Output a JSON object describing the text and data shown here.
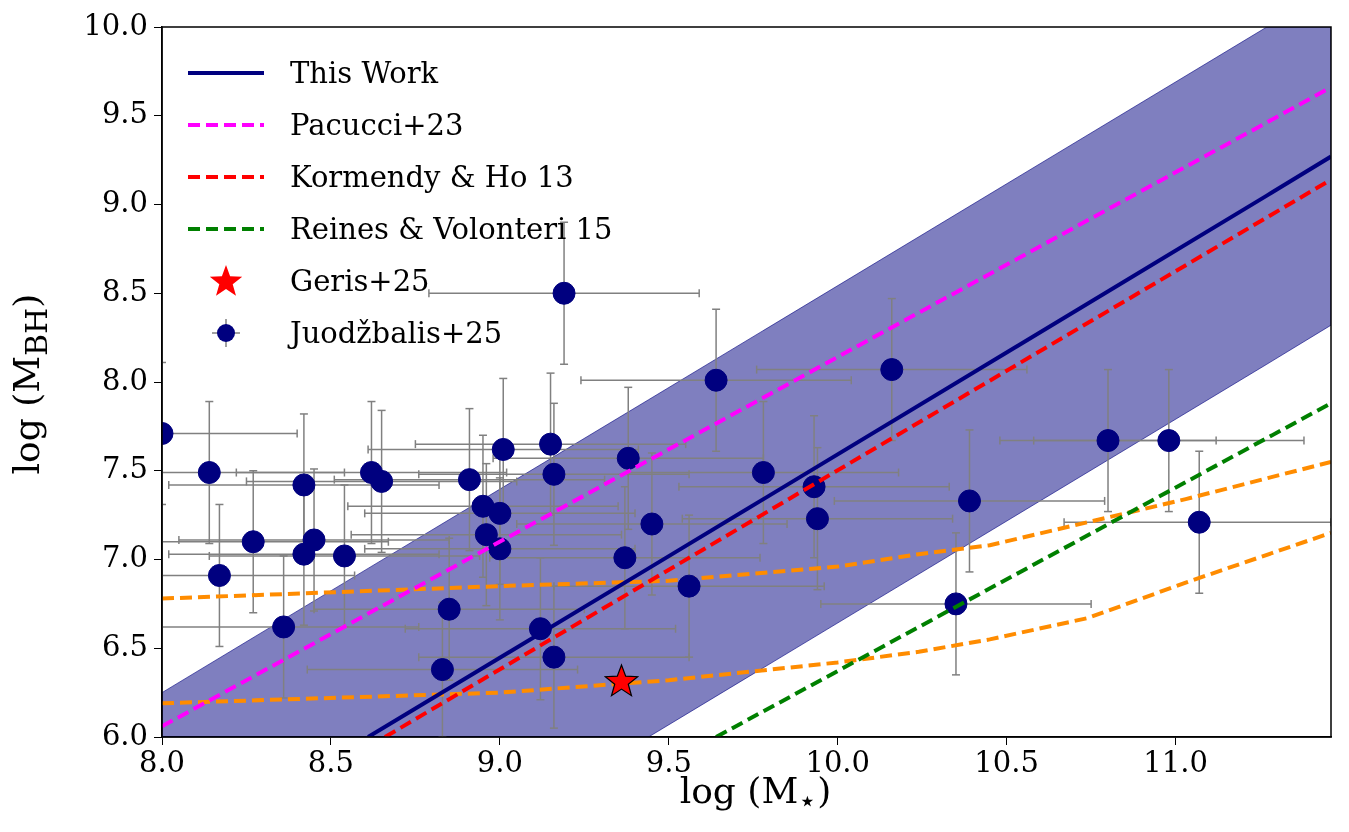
{
  "chart_data": {
    "type": "line",
    "xlabel": "log (M$_{⋆}$)",
    "ylabel": "log (M$_{BH}$)",
    "xlim": [
      8.0,
      11.46
    ],
    "ylim": [
      6.0,
      10.0
    ],
    "xticks": [
      {
        "value": 8.0,
        "label": "8.0"
      },
      {
        "value": 8.5,
        "label": "8.5"
      },
      {
        "value": 9.0,
        "label": "9.0"
      },
      {
        "value": 9.5,
        "label": "9.5"
      },
      {
        "value": 10.0,
        "label": "10.0"
      },
      {
        "value": 10.5,
        "label": "10.5"
      },
      {
        "value": 11.0,
        "label": "11.0"
      }
    ],
    "yticks": [
      {
        "value": 6.0,
        "label": "6.0"
      },
      {
        "value": 6.5,
        "label": "6.5"
      },
      {
        "value": 7.0,
        "label": "7.0"
      },
      {
        "value": 7.5,
        "label": "7.5"
      },
      {
        "value": 8.0,
        "label": "8.0"
      },
      {
        "value": 8.5,
        "label": "8.5"
      },
      {
        "value": 9.0,
        "label": "9.0"
      },
      {
        "value": 9.5,
        "label": "9.5"
      },
      {
        "value": 10.0,
        "label": "10.0"
      }
    ],
    "grid": false,
    "legend": "top left",
    "series": [
      {
        "name": "This Work",
        "type": "line",
        "color": "#00007f",
        "line_style": "solid",
        "marker": "none",
        "x": [
          8.0,
          8.61,
          9.44,
          11.27,
          11.46
        ],
        "values": [
          null,
          6.0,
          6.95,
          9.05,
          9.27
        ],
        "lower": [
          6.0,
          6.0,
          6.0,
          8.1,
          8.32
        ],
        "upper": [
          6.25,
          6.95,
          7.9,
          10.0,
          10.0
        ]
      },
      {
        "name": "Pacucci+23",
        "type": "line",
        "color": "#ff00ff",
        "line_style": "dashed",
        "marker": "none",
        "x": [
          8.0,
          11.46
        ],
        "values": [
          6.06,
          9.66
        ]
      },
      {
        "name": "Kormendy & Ho 13",
        "type": "line",
        "color": "#ff0000",
        "line_style": "dashed",
        "marker": "none",
        "x": [
          8.66,
          11.46
        ],
        "values": [
          6.0,
          9.14
        ]
      },
      {
        "name": "Reines & Volonteri 15",
        "type": "line",
        "color": "#008000",
        "line_style": "dashed",
        "marker": "none",
        "x": [
          9.64,
          11.46
        ],
        "values": [
          6.0,
          7.88
        ]
      },
      {
        "name": "Geris+25",
        "type": "scatter",
        "color": "#ff0000",
        "marker": "star",
        "x": [
          9.36
        ],
        "values": [
          6.31
        ]
      },
      {
        "name": "Juodžbalis+25",
        "type": "scatter",
        "color": "#00007f",
        "marker": "circle",
        "x": [
          8.0,
          8.14,
          8.17,
          8.27,
          8.36,
          8.42,
          8.42,
          8.45,
          8.54,
          8.62,
          8.65,
          8.83,
          8.85,
          8.91,
          8.95,
          8.96,
          9.0,
          9.0,
          9.01,
          9.15,
          9.16,
          9.12,
          9.16,
          9.19,
          9.38,
          9.37,
          9.45,
          9.56,
          9.64,
          9.78,
          9.93,
          9.94,
          10.16,
          10.35,
          10.39,
          10.8,
          10.98,
          11.07
        ],
        "values": [
          7.71,
          7.49,
          6.91,
          7.1,
          6.62,
          7.42,
          7.03,
          7.11,
          7.02,
          7.49,
          7.44,
          6.38,
          6.72,
          7.45,
          7.3,
          7.14,
          7.26,
          7.06,
          7.62,
          7.65,
          7.48,
          6.61,
          6.45,
          8.5,
          7.57,
          7.01,
          7.2,
          6.85,
          8.01,
          7.49,
          7.41,
          7.23,
          8.07,
          6.75,
          7.33,
          7.67,
          7.67,
          7.21
        ],
        "errors": [
          0.4,
          0.4,
          0.4,
          0.4,
          0.4,
          0.4,
          0.4,
          0.4,
          0.4,
          0.4,
          0.4,
          0.38,
          0.4,
          0.4,
          0.4,
          0.4,
          0.4,
          0.4,
          0.4,
          0.4,
          0.4,
          0.4,
          0.4,
          0.4,
          0.4,
          0.4,
          0.4,
          0.4,
          0.4,
          0.4,
          0.4,
          0.4,
          0.4,
          0.4,
          0.4,
          0.4,
          0.4,
          0.4
        ],
        "xerrors": [
          [
            8.0,
            8.4
          ],
          [
            8.0,
            8.54
          ],
          [
            8.0,
            8.57
          ],
          [
            8.0,
            8.67
          ],
          [
            8.0,
            8.76
          ],
          0.4,
          0.4,
          0.4,
          0.4,
          0.4,
          0.4,
          0.4,
          0.4,
          0.4,
          0.4,
          0.4,
          0.4,
          0.4,
          0.4,
          0.4,
          0.4,
          0.4,
          0.4,
          0.4,
          0.4,
          0.4,
          0.4,
          0.4,
          0.4,
          0.4,
          0.4,
          0.4,
          0.4,
          0.4,
          0.4,
          0.32,
          0.4,
          [
            10.67,
            11.46
          ]
        ]
      },
      {
        "color": "#ff8c00",
        "line_style": "dashed",
        "marker": "none",
        "x": [
          8.0,
          9.0,
          9.5,
          10.0,
          10.24,
          10.45,
          10.74,
          11.03,
          11.46
        ],
        "values": [
          6.78,
          6.85,
          6.88,
          6.96,
          7.03,
          7.08,
          7.21,
          7.34,
          7.55
        ]
      },
      {
        "color": "#ff8c00",
        "line_style": "dashed",
        "marker": "none",
        "x": [
          8.0,
          9.0,
          9.5,
          10.0,
          10.24,
          10.45,
          10.74,
          11.03,
          11.46
        ],
        "values": [
          6.19,
          6.25,
          6.32,
          6.42,
          6.48,
          6.55,
          6.67,
          6.87,
          7.15
        ]
      }
    ]
  }
}
